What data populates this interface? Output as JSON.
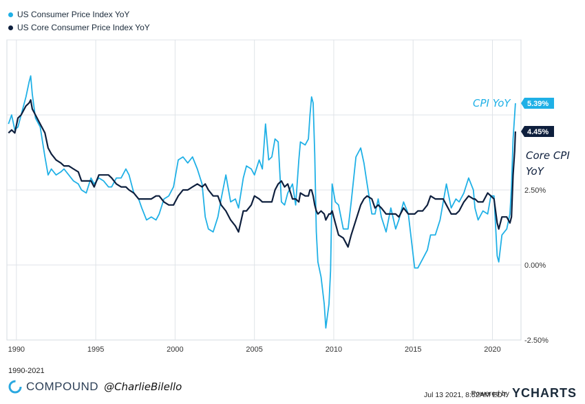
{
  "chart_data": {
    "type": "line",
    "title": "",
    "xlabel": "",
    "ylabel": "",
    "x_range": [
      1989.4,
      2021.8
    ],
    "ylim": [
      -2.5,
      7.5
    ],
    "x_ticks": [
      "1990",
      "1995",
      "2000",
      "2005",
      "2010",
      "2015",
      "2020"
    ],
    "y_ticks": [
      "2.50%",
      "0.00%",
      "-2.50%"
    ],
    "legend_position": "top-left",
    "series": [
      {
        "name": "US Consumer Price Index YoY",
        "color": "#1fb0e6",
        "end_label": "5.39%",
        "points": [
          [
            1989.5,
            4.7
          ],
          [
            1989.7,
            5.0
          ],
          [
            1989.9,
            4.5
          ],
          [
            1990.1,
            4.6
          ],
          [
            1990.3,
            5.0
          ],
          [
            1990.6,
            5.6
          ],
          [
            1990.8,
            6.1
          ],
          [
            1990.9,
            6.3
          ],
          [
            1991.0,
            5.7
          ],
          [
            1991.2,
            4.9
          ],
          [
            1991.5,
            4.6
          ],
          [
            1991.8,
            3.6
          ],
          [
            1992.0,
            3.0
          ],
          [
            1992.2,
            3.2
          ],
          [
            1992.5,
            3.0
          ],
          [
            1992.8,
            3.1
          ],
          [
            1993.0,
            3.2
          ],
          [
            1993.3,
            3.0
          ],
          [
            1993.6,
            2.8
          ],
          [
            1993.9,
            2.7
          ],
          [
            1994.1,
            2.5
          ],
          [
            1994.4,
            2.4
          ],
          [
            1994.7,
            2.9
          ],
          [
            1994.9,
            2.7
          ],
          [
            1995.2,
            2.9
          ],
          [
            1995.5,
            2.8
          ],
          [
            1995.8,
            2.6
          ],
          [
            1996.0,
            2.6
          ],
          [
            1996.3,
            2.9
          ],
          [
            1996.6,
            2.9
          ],
          [
            1996.9,
            3.2
          ],
          [
            1997.1,
            3.0
          ],
          [
            1997.4,
            2.4
          ],
          [
            1997.7,
            2.2
          ],
          [
            1997.9,
            1.9
          ],
          [
            1998.2,
            1.5
          ],
          [
            1998.5,
            1.6
          ],
          [
            1998.8,
            1.5
          ],
          [
            1999.0,
            1.7
          ],
          [
            1999.3,
            2.2
          ],
          [
            1999.6,
            2.3
          ],
          [
            1999.9,
            2.6
          ],
          [
            2000.2,
            3.5
          ],
          [
            2000.5,
            3.6
          ],
          [
            2000.8,
            3.4
          ],
          [
            2001.1,
            3.6
          ],
          [
            2001.4,
            3.2
          ],
          [
            2001.7,
            2.7
          ],
          [
            2001.9,
            1.6
          ],
          [
            2002.1,
            1.2
          ],
          [
            2002.4,
            1.1
          ],
          [
            2002.7,
            1.6
          ],
          [
            2002.9,
            2.2
          ],
          [
            2003.2,
            3.0
          ],
          [
            2003.5,
            2.1
          ],
          [
            2003.8,
            2.2
          ],
          [
            2004.0,
            1.9
          ],
          [
            2004.3,
            2.9
          ],
          [
            2004.5,
            3.3
          ],
          [
            2004.8,
            3.2
          ],
          [
            2005.0,
            3.0
          ],
          [
            2005.3,
            3.5
          ],
          [
            2005.5,
            3.2
          ],
          [
            2005.7,
            4.7
          ],
          [
            2005.9,
            3.5
          ],
          [
            2006.1,
            3.6
          ],
          [
            2006.3,
            4.2
          ],
          [
            2006.5,
            4.1
          ],
          [
            2006.7,
            2.1
          ],
          [
            2006.9,
            2.0
          ],
          [
            2007.1,
            2.4
          ],
          [
            2007.4,
            2.7
          ],
          [
            2007.6,
            2.0
          ],
          [
            2007.8,
            3.5
          ],
          [
            2007.9,
            4.1
          ],
          [
            2008.2,
            4.0
          ],
          [
            2008.4,
            4.2
          ],
          [
            2008.5,
            5.0
          ],
          [
            2008.6,
            5.6
          ],
          [
            2008.7,
            5.4
          ],
          [
            2008.8,
            3.7
          ],
          [
            2008.9,
            1.1
          ],
          [
            2009.0,
            0.1
          ],
          [
            2009.2,
            -0.4
          ],
          [
            2009.4,
            -1.3
          ],
          [
            2009.5,
            -2.1
          ],
          [
            2009.7,
            -1.3
          ],
          [
            2009.8,
            -0.2
          ],
          [
            2009.9,
            2.7
          ],
          [
            2010.1,
            2.1
          ],
          [
            2010.3,
            2.0
          ],
          [
            2010.6,
            1.2
          ],
          [
            2010.9,
            1.2
          ],
          [
            2011.1,
            2.1
          ],
          [
            2011.4,
            3.6
          ],
          [
            2011.7,
            3.9
          ],
          [
            2011.9,
            3.4
          ],
          [
            2012.1,
            2.7
          ],
          [
            2012.4,
            1.7
          ],
          [
            2012.6,
            1.7
          ],
          [
            2012.8,
            2.2
          ],
          [
            2013.0,
            1.6
          ],
          [
            2013.3,
            1.1
          ],
          [
            2013.6,
            1.9
          ],
          [
            2013.9,
            1.2
          ],
          [
            2014.1,
            1.5
          ],
          [
            2014.4,
            2.1
          ],
          [
            2014.7,
            1.7
          ],
          [
            2014.9,
            0.8
          ],
          [
            2015.1,
            -0.1
          ],
          [
            2015.3,
            -0.1
          ],
          [
            2015.6,
            0.2
          ],
          [
            2015.9,
            0.5
          ],
          [
            2016.1,
            1.0
          ],
          [
            2016.4,
            1.0
          ],
          [
            2016.7,
            1.5
          ],
          [
            2016.9,
            2.1
          ],
          [
            2017.1,
            2.7
          ],
          [
            2017.4,
            1.9
          ],
          [
            2017.7,
            2.2
          ],
          [
            2017.9,
            2.1
          ],
          [
            2018.2,
            2.4
          ],
          [
            2018.5,
            2.9
          ],
          [
            2018.8,
            2.5
          ],
          [
            2018.9,
            1.9
          ],
          [
            2019.1,
            1.5
          ],
          [
            2019.4,
            1.8
          ],
          [
            2019.7,
            1.7
          ],
          [
            2019.9,
            2.3
          ],
          [
            2020.1,
            2.3
          ],
          [
            2020.3,
            0.3
          ],
          [
            2020.4,
            0.1
          ],
          [
            2020.6,
            1.0
          ],
          [
            2020.9,
            1.2
          ],
          [
            2021.1,
            1.7
          ],
          [
            2021.2,
            2.6
          ],
          [
            2021.3,
            4.2
          ],
          [
            2021.4,
            5.0
          ],
          [
            2021.45,
            5.39
          ]
        ]
      },
      {
        "name": "US Core Consumer Price Index YoY",
        "color": "#0e1f3d",
        "end_label": "4.45%",
        "points": [
          [
            1989.5,
            4.4
          ],
          [
            1989.7,
            4.5
          ],
          [
            1989.9,
            4.4
          ],
          [
            1990.1,
            4.9
          ],
          [
            1990.3,
            5.0
          ],
          [
            1990.6,
            5.3
          ],
          [
            1990.8,
            5.4
          ],
          [
            1990.9,
            5.5
          ],
          [
            1991.0,
            5.2
          ],
          [
            1991.2,
            5.0
          ],
          [
            1991.5,
            4.7
          ],
          [
            1991.8,
            4.4
          ],
          [
            1992.0,
            3.9
          ],
          [
            1992.2,
            3.7
          ],
          [
            1992.5,
            3.5
          ],
          [
            1992.8,
            3.4
          ],
          [
            1993.0,
            3.3
          ],
          [
            1993.3,
            3.3
          ],
          [
            1993.6,
            3.2
          ],
          [
            1993.9,
            3.1
          ],
          [
            1994.1,
            2.8
          ],
          [
            1994.4,
            2.8
          ],
          [
            1994.7,
            2.8
          ],
          [
            1994.9,
            2.6
          ],
          [
            1995.2,
            3.0
          ],
          [
            1995.5,
            3.0
          ],
          [
            1995.8,
            3.0
          ],
          [
            1996.0,
            2.9
          ],
          [
            1996.3,
            2.7
          ],
          [
            1996.6,
            2.6
          ],
          [
            1996.9,
            2.6
          ],
          [
            1997.1,
            2.5
          ],
          [
            1997.4,
            2.4
          ],
          [
            1997.7,
            2.2
          ],
          [
            1997.9,
            2.2
          ],
          [
            1998.2,
            2.2
          ],
          [
            1998.5,
            2.2
          ],
          [
            1998.8,
            2.3
          ],
          [
            1999.0,
            2.3
          ],
          [
            1999.3,
            2.1
          ],
          [
            1999.6,
            2.0
          ],
          [
            1999.9,
            2.0
          ],
          [
            2000.2,
            2.3
          ],
          [
            2000.5,
            2.5
          ],
          [
            2000.8,
            2.5
          ],
          [
            2001.1,
            2.6
          ],
          [
            2001.4,
            2.7
          ],
          [
            2001.7,
            2.6
          ],
          [
            2001.9,
            2.7
          ],
          [
            2002.1,
            2.5
          ],
          [
            2002.4,
            2.3
          ],
          [
            2002.7,
            2.3
          ],
          [
            2002.9,
            2.0
          ],
          [
            2003.2,
            1.8
          ],
          [
            2003.5,
            1.5
          ],
          [
            2003.8,
            1.3
          ],
          [
            2004.0,
            1.1
          ],
          [
            2004.3,
            1.8
          ],
          [
            2004.5,
            1.8
          ],
          [
            2004.8,
            2.0
          ],
          [
            2005.0,
            2.3
          ],
          [
            2005.3,
            2.2
          ],
          [
            2005.5,
            2.1
          ],
          [
            2005.7,
            2.1
          ],
          [
            2005.9,
            2.1
          ],
          [
            2006.1,
            2.1
          ],
          [
            2006.3,
            2.5
          ],
          [
            2006.5,
            2.7
          ],
          [
            2006.7,
            2.8
          ],
          [
            2006.9,
            2.6
          ],
          [
            2007.1,
            2.7
          ],
          [
            2007.4,
            2.2
          ],
          [
            2007.6,
            2.2
          ],
          [
            2007.8,
            2.1
          ],
          [
            2007.9,
            2.4
          ],
          [
            2008.2,
            2.3
          ],
          [
            2008.4,
            2.3
          ],
          [
            2008.5,
            2.5
          ],
          [
            2008.6,
            2.5
          ],
          [
            2008.7,
            2.3
          ],
          [
            2008.8,
            2.0
          ],
          [
            2008.9,
            1.8
          ],
          [
            2009.0,
            1.7
          ],
          [
            2009.2,
            1.8
          ],
          [
            2009.4,
            1.7
          ],
          [
            2009.5,
            1.5
          ],
          [
            2009.7,
            1.7
          ],
          [
            2009.8,
            1.7
          ],
          [
            2009.9,
            1.8
          ],
          [
            2010.1,
            1.4
          ],
          [
            2010.3,
            1.0
          ],
          [
            2010.6,
            0.9
          ],
          [
            2010.9,
            0.6
          ],
          [
            2011.1,
            1.0
          ],
          [
            2011.4,
            1.5
          ],
          [
            2011.7,
            2.0
          ],
          [
            2011.9,
            2.2
          ],
          [
            2012.1,
            2.3
          ],
          [
            2012.4,
            2.2
          ],
          [
            2012.6,
            1.9
          ],
          [
            2012.8,
            2.0
          ],
          [
            2013.0,
            1.9
          ],
          [
            2013.3,
            1.7
          ],
          [
            2013.6,
            1.7
          ],
          [
            2013.9,
            1.7
          ],
          [
            2014.1,
            1.6
          ],
          [
            2014.4,
            1.9
          ],
          [
            2014.7,
            1.7
          ],
          [
            2014.9,
            1.7
          ],
          [
            2015.1,
            1.7
          ],
          [
            2015.3,
            1.8
          ],
          [
            2015.6,
            1.8
          ],
          [
            2015.9,
            2.0
          ],
          [
            2016.1,
            2.3
          ],
          [
            2016.4,
            2.2
          ],
          [
            2016.7,
            2.2
          ],
          [
            2016.9,
            2.2
          ],
          [
            2017.1,
            2.0
          ],
          [
            2017.4,
            1.7
          ],
          [
            2017.7,
            1.7
          ],
          [
            2017.9,
            1.8
          ],
          [
            2018.2,
            2.1
          ],
          [
            2018.5,
            2.3
          ],
          [
            2018.8,
            2.2
          ],
          [
            2018.9,
            2.2
          ],
          [
            2019.1,
            2.1
          ],
          [
            2019.4,
            2.1
          ],
          [
            2019.7,
            2.4
          ],
          [
            2019.9,
            2.3
          ],
          [
            2020.1,
            2.2
          ],
          [
            2020.3,
            1.4
          ],
          [
            2020.4,
            1.2
          ],
          [
            2020.6,
            1.6
          ],
          [
            2020.9,
            1.6
          ],
          [
            2021.1,
            1.4
          ],
          [
            2021.2,
            1.6
          ],
          [
            2021.3,
            3.0
          ],
          [
            2021.4,
            3.8
          ],
          [
            2021.45,
            4.45
          ]
        ]
      }
    ]
  },
  "legend": {
    "cpi": "US Consumer Price Index YoY",
    "core": "US Core Consumer Price Index YoY"
  },
  "annotations": {
    "cpi": "CPI YoY",
    "core_line1": "Core CPI",
    "core_line2": "YoY"
  },
  "date_range": "1990-2021",
  "brand": {
    "name": "COMPOUND",
    "handle": "@CharlieBilello"
  },
  "footer": {
    "timestamp": "Jul 13 2021, 8:52AM EDT.",
    "powered_by": "Powered by",
    "provider": "YCHARTS"
  },
  "colors": {
    "cpi": "#1fb0e6",
    "core": "#0e1f3d",
    "grid": "#dfe3e8"
  }
}
